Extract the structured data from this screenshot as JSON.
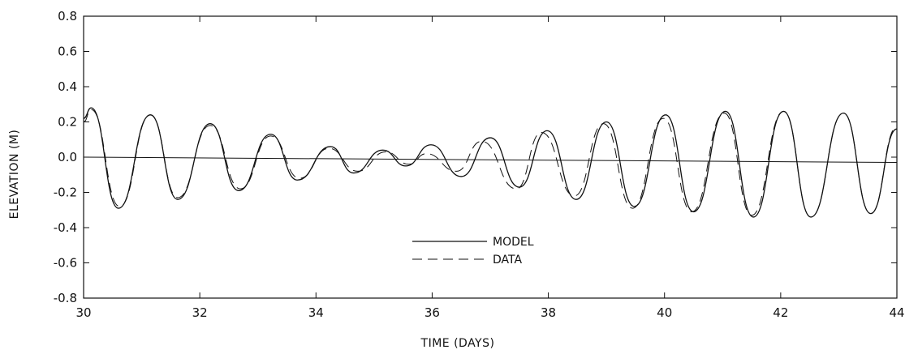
{
  "chart_data": {
    "type": "line",
    "title": "",
    "xlabel": "TIME (DAYS)",
    "ylabel": "ELEVATION (M)",
    "xlim": [
      30,
      44
    ],
    "ylim": [
      -0.8,
      0.8
    ],
    "x_ticks": [
      30,
      32,
      34,
      36,
      38,
      40,
      42,
      44
    ],
    "x_tick_labels": [
      "30",
      "32",
      "34",
      "36",
      "38",
      "40",
      "42",
      "44"
    ],
    "y_ticks": [
      0.8,
      0.6,
      0.4,
      0.2,
      0.0,
      -0.2,
      -0.4,
      -0.6,
      -0.8
    ],
    "y_tick_labels": [
      "0.8",
      "0.6",
      "0.4",
      "0.2",
      "0.0",
      "-0.2",
      "-0.4",
      "-0.6",
      "-0.8"
    ],
    "grid": false,
    "legend_position": "bottom-center",
    "reference_line": {
      "y_start": 0.0,
      "y_end": -0.03
    },
    "series": [
      {
        "name": "MODEL",
        "style": "solid",
        "x": [
          30.0,
          30.13,
          30.6,
          31.15,
          31.62,
          32.18,
          32.67,
          33.22,
          33.68,
          34.25,
          34.65,
          35.15,
          35.55,
          35.98,
          36.5,
          37.0,
          37.5,
          37.98,
          38.48,
          39.0,
          39.48,
          40.02,
          40.5,
          41.05,
          41.53,
          42.05,
          42.52,
          43.08,
          43.55,
          44.0
        ],
        "y": [
          0.22,
          0.28,
          -0.29,
          0.24,
          -0.24,
          0.19,
          -0.19,
          0.13,
          -0.13,
          0.06,
          -0.09,
          0.04,
          -0.05,
          0.07,
          -0.11,
          0.11,
          -0.17,
          0.15,
          -0.24,
          0.2,
          -0.28,
          0.24,
          -0.31,
          0.26,
          -0.34,
          0.26,
          -0.34,
          0.25,
          -0.32,
          0.16
        ]
      },
      {
        "name": "DATA",
        "style": "dashed",
        "x": [
          30.0,
          30.13,
          30.62,
          31.15,
          31.62,
          32.18,
          32.7,
          33.22,
          33.72,
          34.22,
          34.72,
          35.2,
          35.6,
          35.9,
          36.42,
          36.85,
          37.45,
          37.88,
          38.45,
          38.95,
          39.45,
          39.98,
          40.47,
          41.03,
          41.5,
          42.05,
          42.52,
          43.08,
          43.55,
          44.0
        ],
        "y": [
          0.2,
          0.27,
          -0.28,
          0.24,
          -0.23,
          0.18,
          -0.18,
          0.12,
          -0.12,
          0.05,
          -0.08,
          0.03,
          -0.04,
          0.02,
          -0.08,
          0.09,
          -0.18,
          0.14,
          -0.22,
          0.19,
          -0.29,
          0.22,
          -0.31,
          0.25,
          -0.33,
          0.26,
          -0.34,
          0.25,
          -0.32,
          0.17
        ]
      }
    ]
  }
}
